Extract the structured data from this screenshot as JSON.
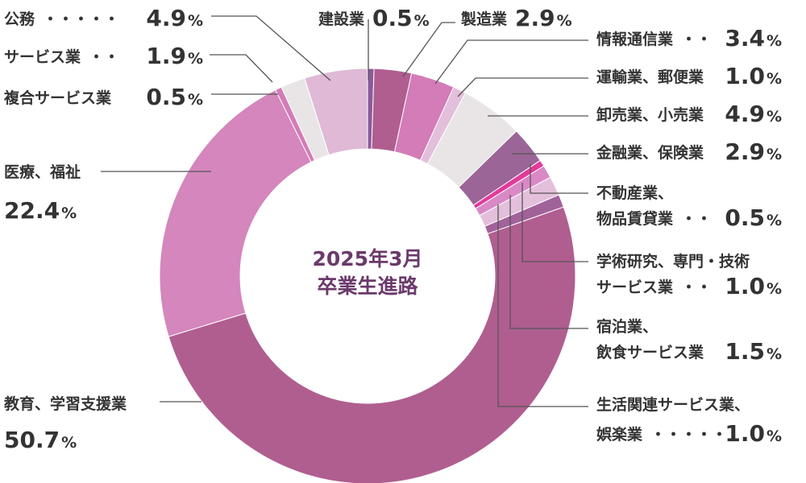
{
  "chart_data": {
    "type": "pie",
    "title": [
      "2025年3月",
      "卒業生進路"
    ],
    "unit": "%",
    "slices": [
      {
        "label": [
          "建設業"
        ],
        "dots": "",
        "value": 0.5,
        "color": "#8a5a9a"
      },
      {
        "label": [
          "製造業"
        ],
        "dots": "",
        "value": 2.9,
        "color": "#b05e90"
      },
      {
        "label": [
          "情報通信業"
        ],
        "dots": "・・",
        "value": 3.4,
        "color": "#d37cb8"
      },
      {
        "label": [
          "運輸業、郵便業"
        ],
        "dots": "",
        "value": 1.0,
        "color": "#e3bfdb"
      },
      {
        "label": [
          "卸売業、小売業"
        ],
        "dots": "",
        "value": 4.9,
        "color": "#e9e5e6"
      },
      {
        "label": [
          "金融業、保険業"
        ],
        "dots": "",
        "value": 2.9,
        "color": "#9b6597"
      },
      {
        "label": [
          "不動産業、",
          "物品賃貸業"
        ],
        "dots": "・・",
        "value": 0.5,
        "color": "#e23a9a"
      },
      {
        "label": [
          "学術研究、専門・技術",
          "サービス業"
        ],
        "dots": "・・",
        "value": 1.0,
        "color": "#d989c5"
      },
      {
        "label": [
          "宿泊業、",
          "飲食サービス業"
        ],
        "dots": "",
        "value": 1.5,
        "color": "#e3bfdb"
      },
      {
        "label": [
          "生活関連サービス業、",
          "娯楽業"
        ],
        "dots": "・・・・・",
        "value": 1.0,
        "color": "#a1629a"
      },
      {
        "label": [
          "教育、学習支援業"
        ],
        "dots": "",
        "value": 50.7,
        "color": "#b05e90"
      },
      {
        "label": [
          "医療、福祉"
        ],
        "dots": "",
        "value": 22.4,
        "color": "#d486bd"
      },
      {
        "label": [
          "複合サービス業"
        ],
        "dots": "",
        "value": 0.5,
        "color": "#d37cb8"
      },
      {
        "label": [
          "サービス業"
        ],
        "dots": "・・",
        "value": 1.9,
        "color": "#e9e5e6"
      },
      {
        "label": [
          "公務"
        ],
        "dots": "・・・・・",
        "value": 4.9,
        "color": "#dfb9d6"
      }
    ]
  }
}
